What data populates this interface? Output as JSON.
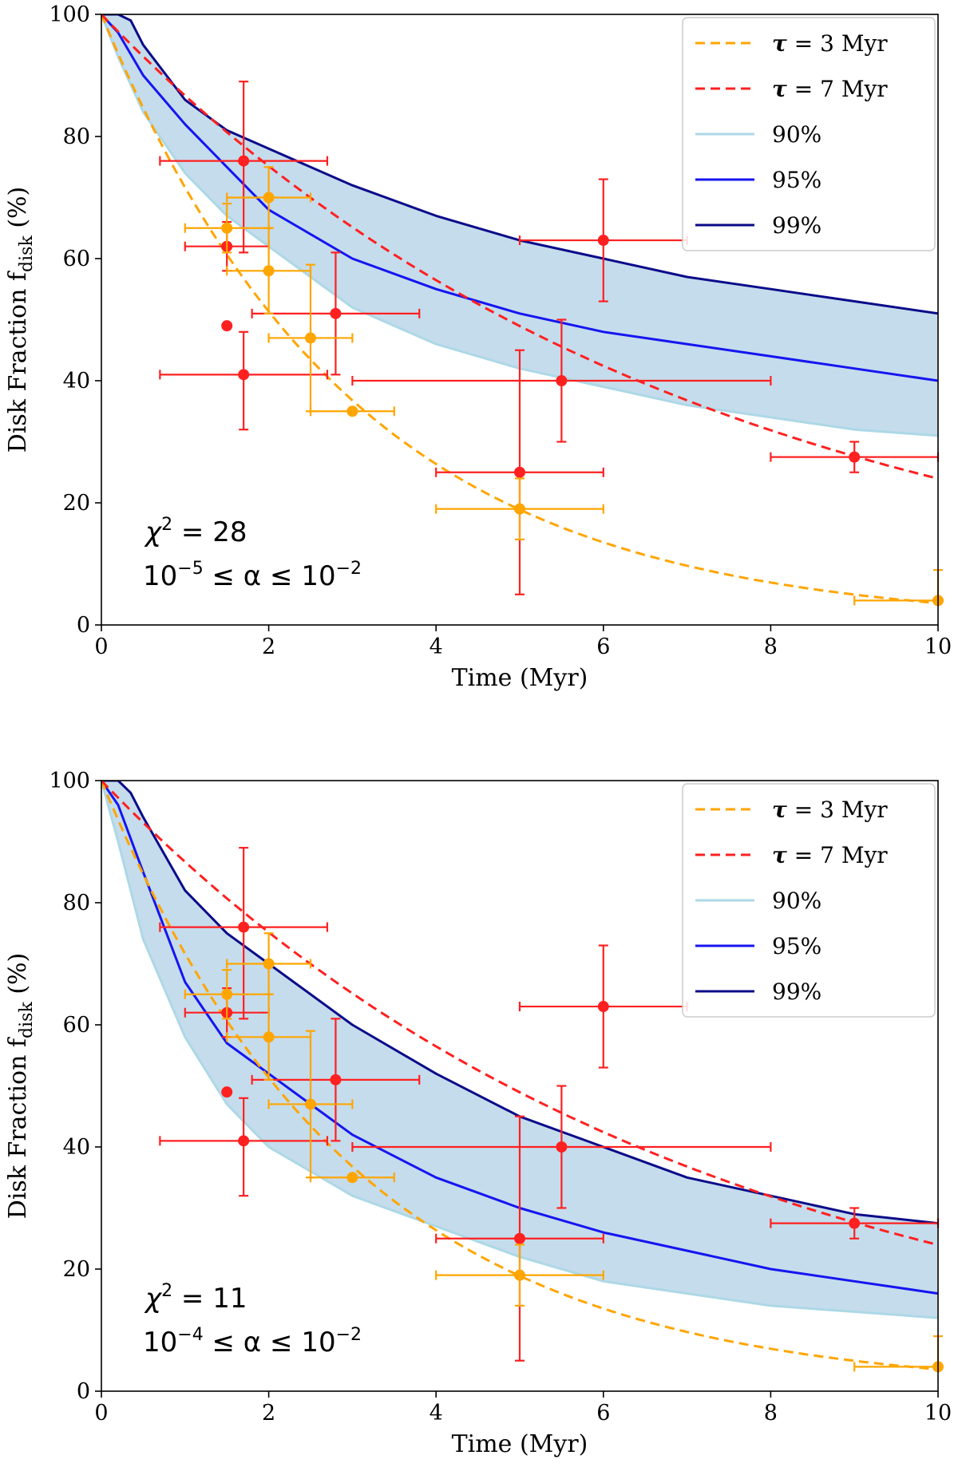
{
  "chart_data": [
    {
      "type": "line",
      "panel": "top",
      "xlabel": "Time (Myr)",
      "ylabel_main": "Disk Fraction f",
      "ylabel_sub": "disk",
      "ylabel_tail": " (%)",
      "xlim": [
        0,
        10
      ],
      "ylim": [
        0,
        100
      ],
      "xticks": [
        0,
        2,
        4,
        6,
        8,
        10
      ],
      "yticks": [
        0,
        20,
        40,
        60,
        80,
        100
      ],
      "legend_position": "top-right",
      "annotation": {
        "chi_label": "χ",
        "chi_exp": "2",
        "chi_value": " = 28",
        "alpha_lo_base": "10",
        "alpha_lo_exp": "−5",
        "alpha_mid": " ≤ α ≤ ",
        "alpha_hi_base": "10",
        "alpha_hi_exp": "−2"
      },
      "legend": [
        {
          "symbol": "τ",
          "label": " = 3 Myr",
          "color": "#ffa500",
          "style": "dashed"
        },
        {
          "symbol": "τ",
          "label": " = 7 Myr",
          "color": "#ff2020",
          "style": "dashed"
        },
        {
          "symbol": "",
          "label": "90%",
          "color": "#add8e6",
          "style": "solid"
        },
        {
          "symbol": "",
          "label": "95%",
          "color": "#1515f0",
          "style": "solid"
        },
        {
          "symbol": "",
          "label": "99%",
          "color": "#0b0b8a",
          "style": "solid"
        }
      ],
      "exp_models": [
        {
          "name": "τ = 3 Myr",
          "tau": 3,
          "color": "#ffa500"
        },
        {
          "name": "τ = 7 Myr",
          "tau": 7,
          "color": "#ff2020"
        }
      ],
      "fill_color": "#c5dcec",
      "series": [
        {
          "name": "90%",
          "color": "#add8e6",
          "x": [
            0,
            0.2,
            0.5,
            1,
            1.5,
            2,
            3,
            4,
            5,
            6,
            7,
            8,
            9,
            10
          ],
          "y": [
            100,
            93,
            84,
            74,
            67,
            62,
            52,
            46,
            42,
            39,
            36,
            34,
            32,
            31
          ]
        },
        {
          "name": "95%",
          "color": "#1515f0",
          "x": [
            0,
            0.2,
            0.5,
            1,
            1.5,
            2,
            3,
            4,
            5,
            6,
            7,
            8,
            9,
            10
          ],
          "y": [
            100,
            97,
            90,
            82,
            75,
            68,
            60,
            55,
            51,
            48,
            46,
            44,
            42,
            40
          ]
        },
        {
          "name": "99%",
          "color": "#0b0b8a",
          "x": [
            0,
            0.2,
            0.35,
            0.5,
            1,
            1.5,
            2,
            3,
            4,
            5,
            6,
            7,
            8,
            9,
            10
          ],
          "y": [
            100,
            100,
            99,
            95,
            86,
            81,
            78,
            72,
            67,
            63,
            60,
            57,
            55,
            53,
            51
          ]
        }
      ],
      "data_points": [
        {
          "x": 1.7,
          "y": 76,
          "xerr": [
            1.0,
            1.0
          ],
          "yerr": [
            15,
            13
          ],
          "color": "#ff2020"
        },
        {
          "x": 1.5,
          "y": 62,
          "xerr": [
            0.5,
            0.5
          ],
          "yerr": [
            4,
            4
          ],
          "color": "#ff2020"
        },
        {
          "x": 1.5,
          "y": 49,
          "xerr": [
            0,
            0
          ],
          "yerr": [
            0,
            0
          ],
          "color": "#ff2020"
        },
        {
          "x": 1.7,
          "y": 41,
          "xerr": [
            1.0,
            1.0
          ],
          "yerr": [
            9,
            7
          ],
          "color": "#ff2020"
        },
        {
          "x": 2.8,
          "y": 51,
          "xerr": [
            1.0,
            1.0
          ],
          "yerr": [
            10,
            10
          ],
          "color": "#ff2020"
        },
        {
          "x": 6.0,
          "y": 63,
          "xerr": [
            1.0,
            1.0
          ],
          "yerr": [
            10,
            10
          ],
          "color": "#ff2020"
        },
        {
          "x": 5.5,
          "y": 40,
          "xerr": [
            2.5,
            2.5
          ],
          "yerr": [
            10,
            10
          ],
          "color": "#ff2020"
        },
        {
          "x": 5.0,
          "y": 25,
          "xerr": [
            1.0,
            1.0
          ],
          "yerr": [
            20,
            20
          ],
          "color": "#ff2020"
        },
        {
          "x": 9.0,
          "y": 27.5,
          "xerr": [
            1.0,
            1.0
          ],
          "yerr": [
            2.5,
            2.5
          ],
          "color": "#ff2020"
        },
        {
          "x": 2.0,
          "y": 70,
          "xerr": [
            0.5,
            0.5
          ],
          "yerr": [
            5,
            5
          ],
          "color": "#ffa500"
        },
        {
          "x": 1.5,
          "y": 65,
          "xerr": [
            0.5,
            0.5
          ],
          "yerr": [
            4,
            4
          ],
          "color": "#ffa500"
        },
        {
          "x": 2.0,
          "y": 58,
          "xerr": [
            0.5,
            0.5
          ],
          "yerr": [
            7,
            7
          ],
          "color": "#ffa500"
        },
        {
          "x": 2.5,
          "y": 47,
          "xerr": [
            0.5,
            0.5
          ],
          "yerr": [
            12,
            12
          ],
          "color": "#ffa500"
        },
        {
          "x": 3.0,
          "y": 35,
          "xerr": [
            0.5,
            0.5
          ],
          "yerr": [
            0,
            0
          ],
          "color": "#ffa500"
        },
        {
          "x": 5.0,
          "y": 19,
          "xerr": [
            1.0,
            1.0
          ],
          "yerr": [
            5,
            5
          ],
          "color": "#ffa500"
        },
        {
          "x": 10.0,
          "y": 4,
          "xerr": [
            1.0,
            0
          ],
          "yerr": [
            0,
            5
          ],
          "color": "#ffa500"
        }
      ]
    },
    {
      "type": "line",
      "panel": "bottom",
      "xlabel": "Time (Myr)",
      "ylabel_main": "Disk Fraction f",
      "ylabel_sub": "disk",
      "ylabel_tail": " (%)",
      "xlim": [
        0,
        10
      ],
      "ylim": [
        0,
        100
      ],
      "xticks": [
        0,
        2,
        4,
        6,
        8,
        10
      ],
      "yticks": [
        0,
        20,
        40,
        60,
        80,
        100
      ],
      "legend_position": "top-right",
      "annotation": {
        "chi_label": "χ",
        "chi_exp": "2",
        "chi_value": " = 11",
        "alpha_lo_base": "10",
        "alpha_lo_exp": "−4",
        "alpha_mid": " ≤ α ≤ ",
        "alpha_hi_base": "10",
        "alpha_hi_exp": "−2"
      },
      "legend": [
        {
          "symbol": "τ",
          "label": " = 3 Myr",
          "color": "#ffa500",
          "style": "dashed"
        },
        {
          "symbol": "τ",
          "label": " = 7 Myr",
          "color": "#ff2020",
          "style": "dashed"
        },
        {
          "symbol": "",
          "label": "90%",
          "color": "#add8e6",
          "style": "solid"
        },
        {
          "symbol": "",
          "label": "95%",
          "color": "#1515f0",
          "style": "solid"
        },
        {
          "symbol": "",
          "label": "99%",
          "color": "#0b0b8a",
          "style": "solid"
        }
      ],
      "exp_models": [
        {
          "name": "τ = 3 Myr",
          "tau": 3,
          "color": "#ffa500"
        },
        {
          "name": "τ = 7 Myr",
          "tau": 7,
          "color": "#ff2020"
        }
      ],
      "fill_color": "#c5dcec",
      "series": [
        {
          "name": "90%",
          "color": "#add8e6",
          "x": [
            0,
            0.2,
            0.5,
            1,
            1.5,
            2,
            3,
            4,
            5,
            6,
            7,
            8,
            9,
            10
          ],
          "y": [
            100,
            90,
            74,
            58,
            47,
            40,
            32,
            27,
            22,
            18,
            16,
            14,
            13,
            12
          ]
        },
        {
          "name": "95%",
          "color": "#1515f0",
          "x": [
            0,
            0.2,
            0.5,
            1,
            1.5,
            2,
            3,
            4,
            5,
            6,
            7,
            8,
            9,
            10
          ],
          "y": [
            100,
            96,
            85,
            67,
            57,
            52,
            42,
            35,
            30,
            26,
            23,
            20,
            18,
            16
          ]
        },
        {
          "name": "99%",
          "color": "#0b0b8a",
          "x": [
            0,
            0.2,
            0.35,
            0.5,
            1,
            1.5,
            2,
            3,
            4,
            5,
            6,
            7,
            8,
            9,
            10
          ],
          "y": [
            100,
            100,
            98,
            94,
            82,
            75,
            70,
            60,
            52,
            45,
            40,
            35,
            32,
            29,
            27.5
          ]
        }
      ],
      "data_points": [
        {
          "x": 1.7,
          "y": 76,
          "xerr": [
            1.0,
            1.0
          ],
          "yerr": [
            15,
            13
          ],
          "color": "#ff2020"
        },
        {
          "x": 1.5,
          "y": 62,
          "xerr": [
            0.5,
            0.5
          ],
          "yerr": [
            4,
            4
          ],
          "color": "#ff2020"
        },
        {
          "x": 1.5,
          "y": 49,
          "xerr": [
            0,
            0
          ],
          "yerr": [
            0,
            0
          ],
          "color": "#ff2020"
        },
        {
          "x": 1.7,
          "y": 41,
          "xerr": [
            1.0,
            1.0
          ],
          "yerr": [
            9,
            7
          ],
          "color": "#ff2020"
        },
        {
          "x": 2.8,
          "y": 51,
          "xerr": [
            1.0,
            1.0
          ],
          "yerr": [
            10,
            10
          ],
          "color": "#ff2020"
        },
        {
          "x": 6.0,
          "y": 63,
          "xerr": [
            1.0,
            1.0
          ],
          "yerr": [
            10,
            10
          ],
          "color": "#ff2020"
        },
        {
          "x": 5.5,
          "y": 40,
          "xerr": [
            2.5,
            2.5
          ],
          "yerr": [
            10,
            10
          ],
          "color": "#ff2020"
        },
        {
          "x": 5.0,
          "y": 25,
          "xerr": [
            1.0,
            1.0
          ],
          "yerr": [
            20,
            20
          ],
          "color": "#ff2020"
        },
        {
          "x": 9.0,
          "y": 27.5,
          "xerr": [
            1.0,
            1.0
          ],
          "yerr": [
            2.5,
            2.5
          ],
          "color": "#ff2020"
        },
        {
          "x": 2.0,
          "y": 70,
          "xerr": [
            0.5,
            0.5
          ],
          "yerr": [
            5,
            5
          ],
          "color": "#ffa500"
        },
        {
          "x": 1.5,
          "y": 65,
          "xerr": [
            0.5,
            0.5
          ],
          "yerr": [
            4,
            4
          ],
          "color": "#ffa500"
        },
        {
          "x": 2.0,
          "y": 58,
          "xerr": [
            0.5,
            0.5
          ],
          "yerr": [
            7,
            7
          ],
          "color": "#ffa500"
        },
        {
          "x": 2.5,
          "y": 47,
          "xerr": [
            0.5,
            0.5
          ],
          "yerr": [
            12,
            12
          ],
          "color": "#ffa500"
        },
        {
          "x": 3.0,
          "y": 35,
          "xerr": [
            0.5,
            0.5
          ],
          "yerr": [
            0,
            0
          ],
          "color": "#ffa500"
        },
        {
          "x": 5.0,
          "y": 19,
          "xerr": [
            1.0,
            1.0
          ],
          "yerr": [
            5,
            5
          ],
          "color": "#ffa500"
        },
        {
          "x": 10.0,
          "y": 4,
          "xerr": [
            1.0,
            0
          ],
          "yerr": [
            0,
            5
          ],
          "color": "#ffa500"
        }
      ]
    }
  ]
}
